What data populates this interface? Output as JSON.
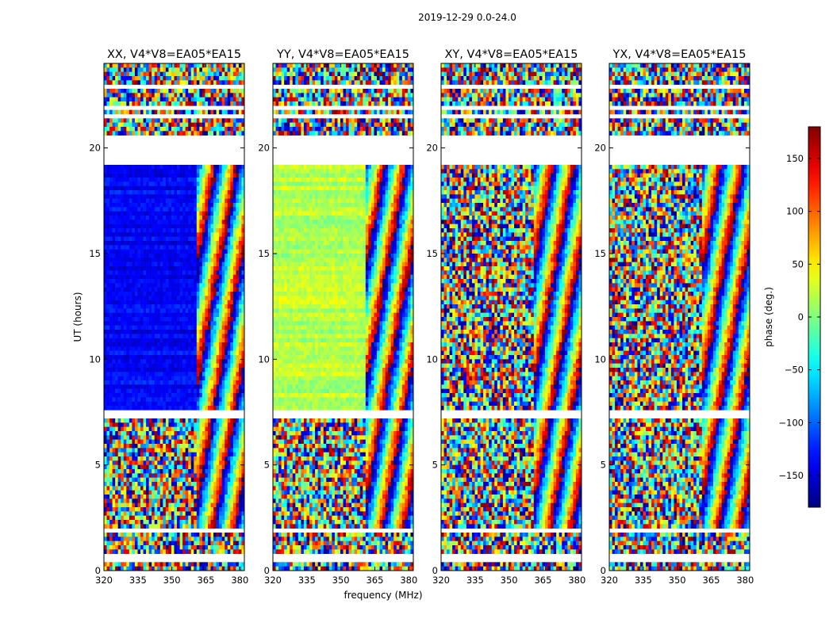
{
  "suptitle": "2019-12-29 0.0-24.0",
  "chart_data": {
    "type": "heatmap",
    "xlabel": "frequency (MHz)",
    "ylabel": "UT (hours)",
    "xlim": [
      320,
      382
    ],
    "ylim": [
      0,
      24
    ],
    "xticks": [
      320,
      335,
      350,
      365,
      380
    ],
    "yticks": [
      0,
      5,
      10,
      15,
      20
    ],
    "colorbar": {
      "label": "phase (deg.)",
      "range": [
        -180,
        180
      ],
      "ticks": [
        -150,
        -100,
        -50,
        0,
        50,
        100,
        150
      ],
      "tick_labels": [
        "−150",
        "−100",
        "−50",
        "0",
        "50",
        "100",
        "150"
      ],
      "colormap": "jet"
    },
    "flagged_bands_hours": [
      [
        0.5,
        0.7
      ],
      [
        1.8,
        2.0
      ],
      [
        7.3,
        7.6
      ],
      [
        19.2,
        20.5
      ],
      [
        21.4,
        21.5
      ],
      [
        21.9,
        22.0
      ],
      [
        22.8,
        23.0
      ]
    ],
    "rfi_boundary_mhz": 360,
    "panels": [
      {
        "title": "XX, V4*V8=EA05*EA15",
        "pol": "XX",
        "low_band_phase_deg": -135,
        "phase_scatter_deg": 25
      },
      {
        "title": "YY, V4*V8=EA05*EA15",
        "pol": "YY",
        "low_band_phase_deg": 20,
        "phase_scatter_deg": 30
      },
      {
        "title": "XY, V4*V8=EA05*EA15",
        "pol": "XY",
        "low_band_phase_deg": null,
        "phase_scatter_deg": 180
      },
      {
        "title": "YX, V4*V8=EA05*EA15",
        "pol": "YX",
        "low_band_phase_deg": null,
        "phase_scatter_deg": 180
      }
    ]
  }
}
